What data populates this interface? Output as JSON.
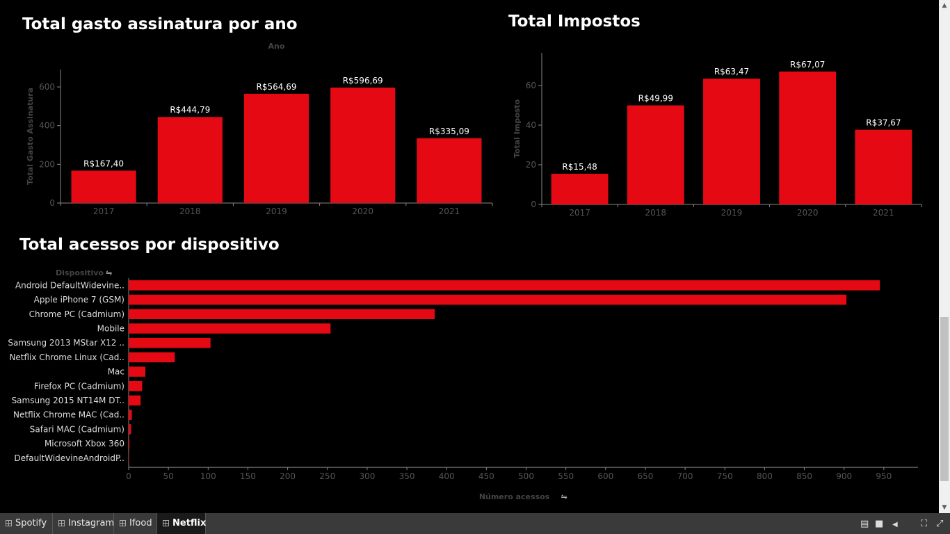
{
  "tabs": [
    {
      "label": "Spotify",
      "active": false
    },
    {
      "label": "Instagram",
      "active": false
    },
    {
      "label": "Ifood",
      "active": false
    },
    {
      "label": "Netflix",
      "active": true
    }
  ],
  "colors": {
    "bar": "#e50914",
    "axis_text": "#555555",
    "background": "#000000"
  },
  "chart_data": [
    {
      "type": "bar",
      "title": "Total gasto assinatura por ano",
      "xlabel": "Ano",
      "ylabel": "Total Gasto Assinatura",
      "categories": [
        "2017",
        "2018",
        "2019",
        "2020",
        "2021"
      ],
      "values": [
        167.4,
        444.79,
        564.69,
        596.69,
        335.09
      ],
      "labels": [
        "R$167,40",
        "R$444,79",
        "R$564,69",
        "R$596,69",
        "R$335,09"
      ],
      "yticks": [
        0,
        200,
        400,
        600
      ],
      "ylim": [
        0,
        690
      ]
    },
    {
      "type": "bar",
      "title": "Total Impostos",
      "xlabel": "Ano",
      "ylabel": "Total Imposto",
      "categories": [
        "2017",
        "2018",
        "2019",
        "2020",
        "2021"
      ],
      "values": [
        15.48,
        49.99,
        63.47,
        67.07,
        37.67
      ],
      "labels": [
        "R$15,48",
        "R$49,99",
        "R$63,47",
        "R$67,07",
        "R$37,67"
      ],
      "yticks": [
        0,
        20,
        40,
        60
      ],
      "ylim": [
        0,
        76.5
      ]
    },
    {
      "type": "bar",
      "orientation": "horizontal",
      "title": "Total acessos por dispositivo",
      "xlabel": "Número acessos",
      "ylabel": "Dispositivo",
      "categories": [
        "Android DefaultWidevine..",
        "Apple iPhone 7 (GSM)",
        "Chrome PC (Cadmium)",
        "Mobile",
        "Samsung 2013 MStar X12 ..",
        "Netflix Chrome Linux (Cad..",
        "Mac",
        "Firefox PC (Cadmium)",
        "Samsung 2015 NT14M DT..",
        "Netflix Chrome MAC (Cad..",
        "Safari MAC (Cadmium)",
        "Microsoft Xbox 360",
        "DefaultWidevineAndroidP.."
      ],
      "values": [
        945,
        903,
        385,
        254,
        103,
        58,
        21,
        17,
        15,
        4,
        3,
        1,
        0
      ],
      "xticks": [
        0,
        50,
        100,
        150,
        200,
        250,
        300,
        350,
        400,
        450,
        500,
        550,
        600,
        650,
        700,
        750,
        800,
        850,
        900,
        950
      ],
      "xlim": [
        0,
        993
      ]
    }
  ]
}
